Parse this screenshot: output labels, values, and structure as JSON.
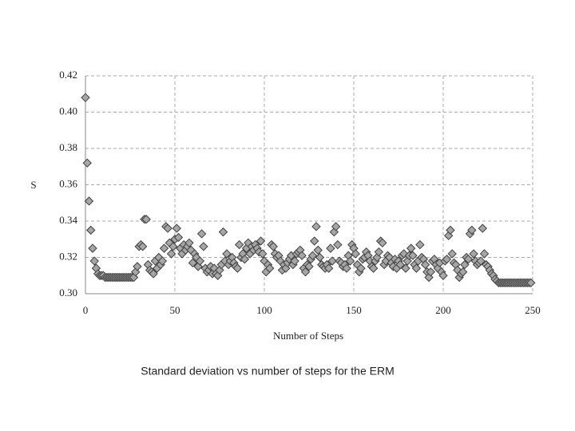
{
  "chart_data": {
    "type": "scatter",
    "x_label": "Number of Steps",
    "y_label": "S",
    "color": "#a6a6a6",
    "edge_color": "#404040",
    "grid": true,
    "xlim": [
      0,
      250
    ],
    "xticks": [
      0,
      50,
      100,
      150,
      200,
      250
    ],
    "ylim": [
      0.3,
      0.42
    ],
    "yticks": [
      {
        "value": 0.3,
        "label": "0.30"
      },
      {
        "value": 0.32,
        "label": "0.32"
      },
      {
        "value": 0.34,
        "label": "0.34"
      },
      {
        "value": 0.36,
        "label": "0.36"
      },
      {
        "value": 0.38,
        "label": "0.38"
      },
      {
        "value": 0.4,
        "label": "0.40"
      },
      {
        "value": 0.42,
        "label": "0.42"
      }
    ],
    "x": [
      0,
      1,
      2,
      3,
      4,
      5,
      6,
      7,
      8,
      9,
      10,
      11,
      12,
      13,
      14,
      15,
      16,
      17,
      18,
      19,
      20,
      21,
      22,
      23,
      24,
      25,
      26,
      27,
      28,
      29,
      30,
      31,
      32,
      33,
      34,
      35,
      36,
      37,
      38,
      39,
      40,
      41,
      42,
      43,
      44,
      45,
      46,
      47,
      48,
      49,
      50,
      51,
      52,
      53,
      54,
      55,
      56,
      57,
      58,
      59,
      60,
      61,
      62,
      63,
      64,
      65,
      66,
      67,
      68,
      69,
      70,
      71,
      72,
      73,
      74,
      75,
      76,
      77,
      78,
      79,
      80,
      81,
      82,
      83,
      84,
      85,
      86,
      87,
      88,
      89,
      90,
      91,
      92,
      93,
      94,
      95,
      96,
      97,
      98,
      99,
      100,
      101,
      102,
      103,
      104,
      105,
      106,
      107,
      108,
      109,
      110,
      111,
      112,
      113,
      114,
      115,
      116,
      117,
      118,
      119,
      120,
      121,
      122,
      123,
      124,
      125,
      126,
      127,
      128,
      129,
      130,
      131,
      132,
      133,
      134,
      135,
      136,
      137,
      138,
      139,
      140,
      141,
      142,
      143,
      144,
      145,
      146,
      147,
      148,
      149,
      150,
      151,
      152,
      153,
      154,
      155,
      156,
      157,
      158,
      159,
      160,
      161,
      162,
      163,
      164,
      165,
      166,
      167,
      168,
      169,
      170,
      171,
      172,
      173,
      174,
      175,
      176,
      177,
      178,
      179,
      180,
      181,
      182,
      183,
      184,
      185,
      186,
      187,
      188,
      189,
      190,
      191,
      192,
      193,
      194,
      195,
      196,
      197,
      198,
      199,
      200,
      201,
      202,
      203,
      204,
      205,
      206,
      207,
      208,
      209,
      210,
      211,
      212,
      213,
      214,
      215,
      216,
      217,
      218,
      219,
      220,
      221,
      222,
      223,
      224,
      225,
      226,
      227,
      228,
      229,
      230,
      231,
      232,
      233,
      234,
      235,
      236,
      237,
      238,
      239,
      240,
      241,
      242,
      243,
      244,
      245,
      246,
      247,
      248,
      249
    ],
    "values": [
      0.408,
      0.372,
      0.351,
      0.335,
      0.325,
      0.318,
      0.314,
      0.311,
      0.31,
      0.31,
      0.31,
      0.309,
      0.309,
      0.309,
      0.309,
      0.309,
      0.309,
      0.309,
      0.309,
      0.309,
      0.309,
      0.309,
      0.309,
      0.309,
      0.309,
      0.309,
      0.309,
      0.309,
      0.312,
      0.315,
      0.326,
      0.327,
      0.326,
      0.341,
      0.341,
      0.316,
      0.313,
      0.312,
      0.311,
      0.318,
      0.314,
      0.32,
      0.316,
      0.318,
      0.325,
      0.337,
      0.336,
      0.328,
      0.322,
      0.326,
      0.33,
      0.336,
      0.331,
      0.325,
      0.322,
      0.327,
      0.324,
      0.326,
      0.328,
      0.324,
      0.317,
      0.322,
      0.32,
      0.315,
      0.318,
      0.333,
      0.326,
      0.314,
      0.312,
      0.313,
      0.315,
      0.311,
      0.314,
      0.311,
      0.31,
      0.313,
      0.316,
      0.334,
      0.318,
      0.322,
      0.316,
      0.318,
      0.32,
      0.317,
      0.315,
      0.314,
      0.327,
      0.32,
      0.322,
      0.319,
      0.325,
      0.328,
      0.322,
      0.326,
      0.324,
      0.327,
      0.325,
      0.323,
      0.329,
      0.322,
      0.318,
      0.312,
      0.316,
      0.314,
      0.327,
      0.326,
      0.322,
      0.32,
      0.321,
      0.318,
      0.313,
      0.316,
      0.314,
      0.317,
      0.319,
      0.321,
      0.316,
      0.318,
      0.322,
      0.323,
      0.324,
      0.321,
      0.314,
      0.312,
      0.316,
      0.315,
      0.319,
      0.321,
      0.329,
      0.337,
      0.324,
      0.32,
      0.316,
      0.315,
      0.314,
      0.316,
      0.314,
      0.325,
      0.318,
      0.334,
      0.337,
      0.327,
      0.318,
      0.317,
      0.315,
      0.316,
      0.314,
      0.321,
      0.318,
      0.327,
      0.325,
      0.322,
      0.316,
      0.312,
      0.314,
      0.319,
      0.32,
      0.323,
      0.321,
      0.318,
      0.315,
      0.314,
      0.318,
      0.32,
      0.323,
      0.329,
      0.328,
      0.316,
      0.318,
      0.321,
      0.32,
      0.317,
      0.315,
      0.319,
      0.314,
      0.318,
      0.316,
      0.321,
      0.322,
      0.314,
      0.318,
      0.321,
      0.325,
      0.321,
      0.316,
      0.314,
      0.318,
      0.327,
      0.32,
      0.319,
      0.316,
      0.312,
      0.309,
      0.312,
      0.318,
      0.319,
      0.316,
      0.314,
      0.317,
      0.312,
      0.31,
      0.318,
      0.319,
      0.332,
      0.335,
      0.322,
      0.317,
      0.316,
      0.313,
      0.309,
      0.311,
      0.312,
      0.316,
      0.32,
      0.319,
      0.333,
      0.335,
      0.322,
      0.318,
      0.316,
      0.317,
      0.318,
      0.336,
      0.322,
      0.316,
      0.315,
      0.313,
      0.311,
      0.31,
      0.308,
      0.307,
      0.306,
      0.306,
      0.306,
      0.306,
      0.306,
      0.306,
      0.306,
      0.306,
      0.306,
      0.306,
      0.306,
      0.306,
      0.306,
      0.306,
      0.306,
      0.306,
      0.306,
      0.306,
      0.306
    ]
  },
  "caption": "Standard deviation vs number of steps for the ERM"
}
